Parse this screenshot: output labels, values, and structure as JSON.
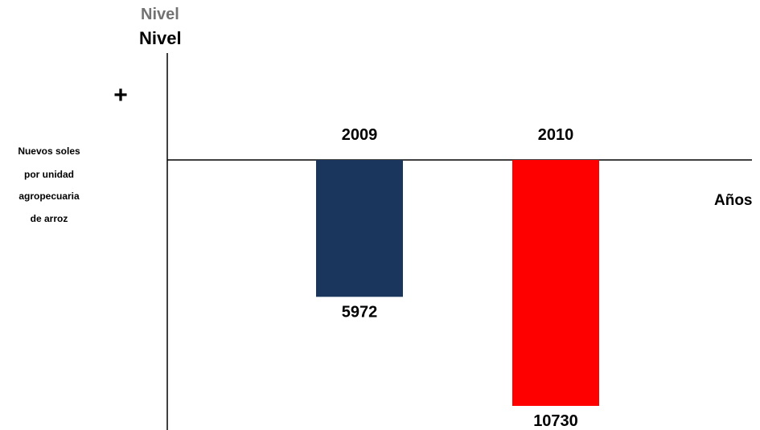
{
  "chart_data": {
    "type": "bar",
    "title": "Nivel",
    "faded_title": "Nivel",
    "ylabel_lines": [
      "Nuevos soles",
      "por unidad",
      "agropecuaria",
      "de arroz"
    ],
    "xlabel": "Años",
    "plus_sign": "+",
    "minus_sign": "-",
    "categories": [
      "2009",
      "2010"
    ],
    "values": [
      -5972,
      -10730
    ],
    "data_labels": [
      "5972",
      "10730"
    ],
    "colors": [
      "#1b365d",
      "#ff0000"
    ],
    "direction": "downward (negative)",
    "grid": false,
    "legend": "none"
  }
}
